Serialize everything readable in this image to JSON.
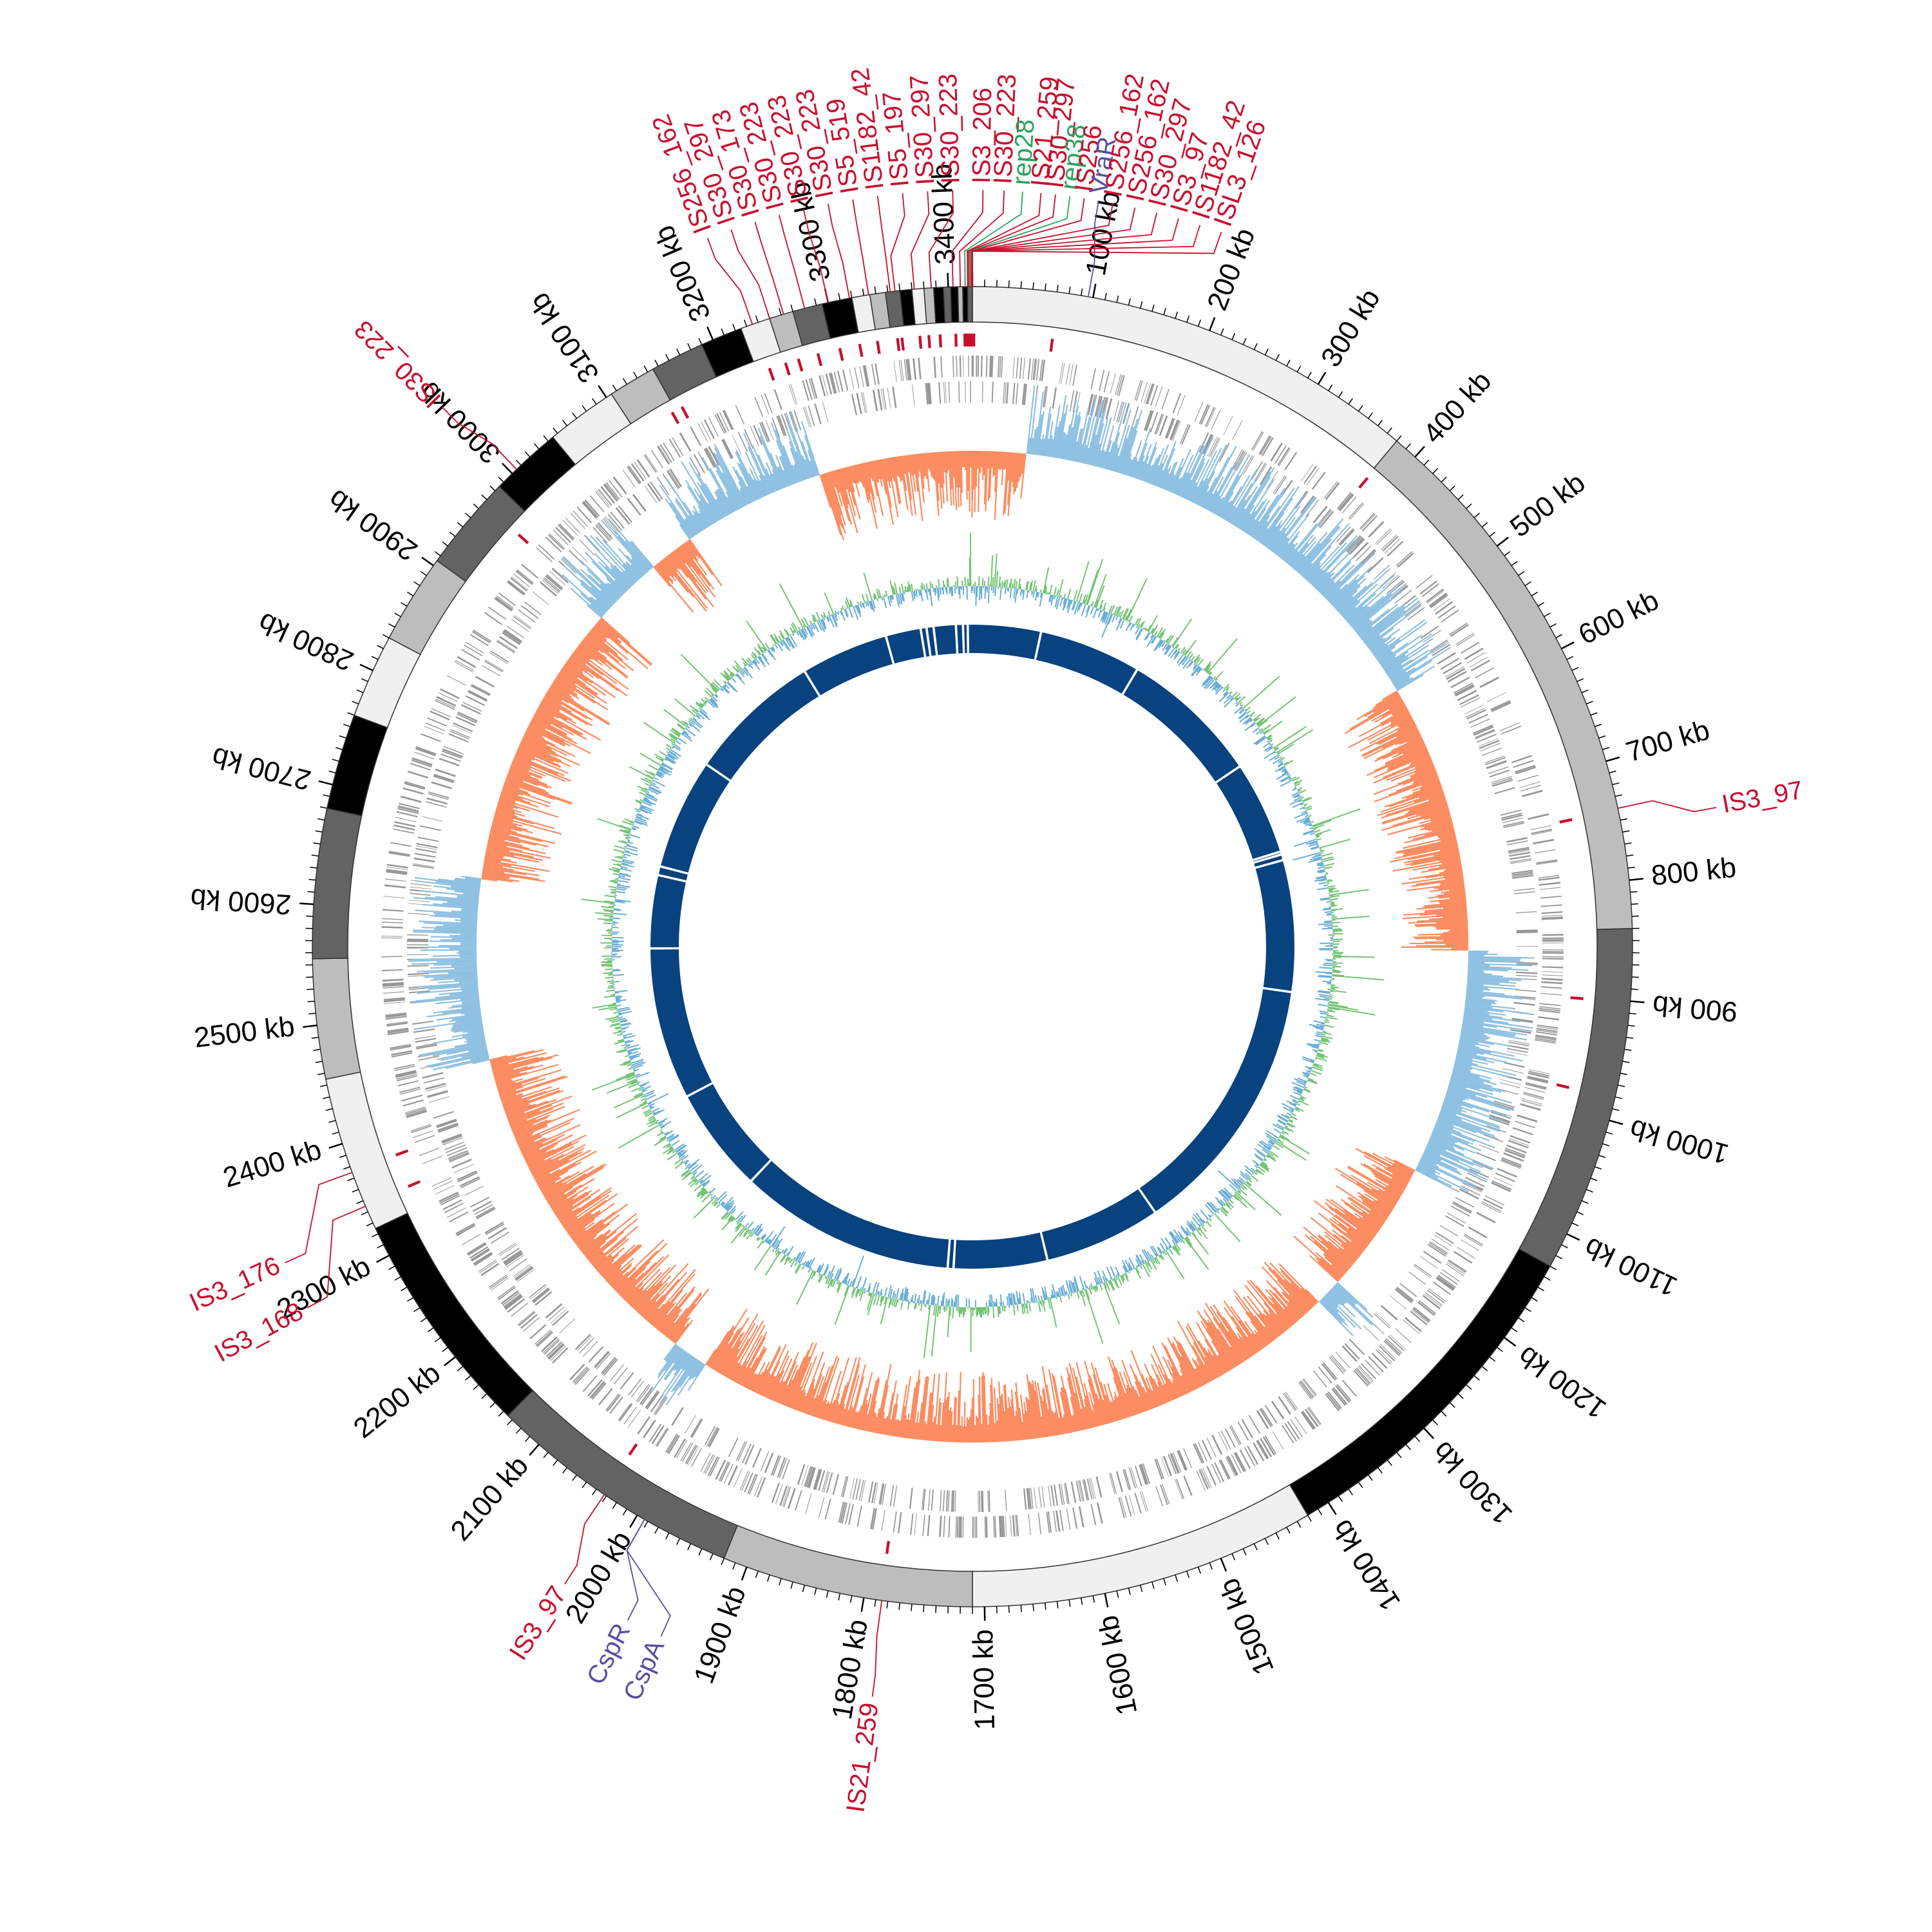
{
  "genome": {
    "length_kb": 3420
  },
  "colors": {
    "is_element": "#c8102e",
    "rep": "#2ca25f",
    "effector": "#5b4ea0",
    "gene": "#969696",
    "skew_positive": "#fc8d62",
    "skew_negative": "#8fc1e3",
    "gc_positive": "#74c476",
    "gc_negative": "#6baed6",
    "homology": "#08427f"
  },
  "tick_labels": [
    "100 kb",
    "200 kb",
    "300 kb",
    "400 kb",
    "500 kb",
    "600 kb",
    "700 kb",
    "800 kb",
    "900 kb",
    "1000 kb",
    "1100 kb",
    "1200 kb",
    "1300 kb",
    "1400 kb",
    "1500 kb",
    "1600 kb",
    "1700 kb",
    "1800 kb",
    "1900 kb",
    "2000 kb",
    "2100 kb",
    "2200 kb",
    "2300 kb",
    "2400 kb",
    "2500 kb",
    "2600 kb",
    "2700 kb",
    "2800 kb",
    "2900 kb",
    "3000 kb",
    "3100 kb",
    "3200 kb",
    "3300 kb",
    "3400 kb"
  ],
  "contigs": [
    {
      "start": 0,
      "end": 380,
      "shade": "#f0f0f0"
    },
    {
      "start": 380,
      "end": 840,
      "shade": "#bdbdbd"
    },
    {
      "start": 840,
      "end": 1130,
      "shade": "#636363"
    },
    {
      "start": 1130,
      "end": 1420,
      "shade": "#000000"
    },
    {
      "start": 1420,
      "end": 1710,
      "shade": "#f0f0f0"
    },
    {
      "start": 1710,
      "end": 1920,
      "shade": "#bdbdbd"
    },
    {
      "start": 1920,
      "end": 2135,
      "shade": "#636363"
    },
    {
      "start": 2135,
      "end": 2325,
      "shade": "#000000"
    },
    {
      "start": 2325,
      "end": 2455,
      "shade": "#f0f0f0"
    },
    {
      "start": 2455,
      "end": 2555,
      "shade": "#bdbdbd"
    },
    {
      "start": 2555,
      "end": 2680,
      "shade": "#636363"
    },
    {
      "start": 2680,
      "end": 2760,
      "shade": "#000000"
    },
    {
      "start": 2760,
      "end": 2830,
      "shade": "#f0f0f0"
    },
    {
      "start": 2830,
      "end": 2905,
      "shade": "#bdbdbd"
    },
    {
      "start": 2905,
      "end": 2985,
      "shade": "#636363"
    },
    {
      "start": 2985,
      "end": 3045,
      "shade": "#000000"
    },
    {
      "start": 3045,
      "end": 3105,
      "shade": "#f0f0f0"
    },
    {
      "start": 3105,
      "end": 3145,
      "shade": "#bdbdbd"
    },
    {
      "start": 3145,
      "end": 3190,
      "shade": "#636363"
    },
    {
      "start": 3190,
      "end": 3225,
      "shade": "#000000"
    },
    {
      "start": 3225,
      "end": 3250,
      "shade": "#f0f0f0"
    },
    {
      "start": 3250,
      "end": 3270,
      "shade": "#bdbdbd"
    },
    {
      "start": 3270,
      "end": 3295,
      "shade": "#636363"
    },
    {
      "start": 3295,
      "end": 3320,
      "shade": "#000000"
    },
    {
      "start": 3320,
      "end": 3335,
      "shade": "#f0f0f0"
    },
    {
      "start": 3335,
      "end": 3348,
      "shade": "#bdbdbd"
    },
    {
      "start": 3348,
      "end": 3360,
      "shade": "#636363"
    },
    {
      "start": 3360,
      "end": 3370,
      "shade": "#000000"
    },
    {
      "start": 3370,
      "end": 3380,
      "shade": "#f0f0f0"
    },
    {
      "start": 3380,
      "end": 3388,
      "shade": "#bdbdbd"
    },
    {
      "start": 3388,
      "end": 3396,
      "shade": "#000000"
    },
    {
      "start": 3396,
      "end": 3402,
      "shade": "#636363"
    },
    {
      "start": 3402,
      "end": 3408,
      "shade": "#000000"
    },
    {
      "start": 3408,
      "end": 3412,
      "shade": "#bdbdbd"
    },
    {
      "start": 3412,
      "end": 3416,
      "shade": "#000000"
    },
    {
      "start": 3416,
      "end": 3420,
      "shade": "#636363"
    }
  ],
  "annotations": [
    {
      "label": "IS256_162",
      "pos": 3235,
      "type": "is",
      "label_angle": -20.5
    },
    {
      "label": "IS30_297",
      "pos": 3250,
      "type": "is",
      "label_angle": -18.6
    },
    {
      "label": "IS30_173",
      "pos": 3262,
      "type": "is",
      "label_angle": -16.7
    },
    {
      "label": "IS30_223",
      "pos": 3280,
      "type": "is",
      "label_angle": -14.8
    },
    {
      "label": "IS30_223",
      "pos": 3300,
      "type": "is",
      "label_angle": -12.9
    },
    {
      "label": "IS30_223",
      "pos": 3318,
      "type": "is",
      "label_angle": -11.0
    },
    {
      "label": "IS5_519",
      "pos": 3334,
      "type": "is",
      "label_angle": -9.1
    },
    {
      "label": "IS1182_42",
      "pos": 3352,
      "type": "is",
      "label_angle": -7.2
    },
    {
      "label": "IS5_197",
      "pos": 3356,
      "type": "is",
      "label_angle": -5.3
    },
    {
      "label": "IS30_297",
      "pos": 3372,
      "type": "is",
      "label_angle": -3.4
    },
    {
      "label": "IS30_223",
      "pos": 3386,
      "type": "is",
      "label_angle": -1.5
    },
    {
      "label": "IS3_206",
      "pos": 3404,
      "type": "is",
      "label_angle": 0.8
    },
    {
      "label": "IS30_223",
      "pos": 3410,
      "type": "is",
      "label_angle": 2.4
    },
    {
      "label": "rep28",
      "pos": 3414,
      "type": "rep",
      "label_angle": 3.8
    },
    {
      "label": "IS21_259",
      "pos": 3416,
      "type": "is",
      "label_angle": 5.2
    },
    {
      "label": "IS30_297",
      "pos": 3417,
      "type": "is",
      "label_angle": 6.3
    },
    {
      "label": "rep38",
      "pos": 3418,
      "type": "rep",
      "label_angle": 7.4
    },
    {
      "label": "IS256",
      "pos": 3419,
      "type": "is",
      "label_angle": 8.5
    },
    {
      "label": "VraR",
      "pos": 96,
      "type": "effector",
      "label_angle": 9.6
    },
    {
      "label": "IS256_162",
      "pos": 3420,
      "type": "is",
      "label_angle": 10.7
    },
    {
      "label": "IS256_162",
      "pos": 3420,
      "type": "is",
      "label_angle": 12.4
    },
    {
      "label": "IS30_297",
      "pos": 3420,
      "type": "is",
      "label_angle": 14.1
    },
    {
      "label": "IS3_97",
      "pos": 3420,
      "type": "is",
      "label_angle": 15.8
    },
    {
      "label": "IS1182_42",
      "pos": 3420,
      "type": "is",
      "label_angle": 17.5
    },
    {
      "label": "ISL3_126",
      "pos": 3420,
      "type": "is",
      "label_angle": 19.2
    },
    {
      "label": "IS3_97",
      "pos": 740,
      "type": "is",
      "label_angle": 79.4
    },
    {
      "label": "IS21_259",
      "pos": 1785,
      "type": "is",
      "label_angle": 187.6
    },
    {
      "label": "CspA",
      "pos": 1993,
      "type": "effector",
      "label_angle": 204.3
    },
    {
      "label": "CspR",
      "pos": 1993,
      "type": "effector",
      "label_angle": 207.1
    },
    {
      "label": "IS3_97",
      "pos": 2032,
      "type": "is",
      "label_angle": 212.6
    },
    {
      "label": "IS3_168",
      "pos": 2345,
      "type": "is",
      "label_angle": 241.5
    },
    {
      "label": "IS3_176",
      "pos": 2375,
      "type": "is",
      "label_angle": 245.3
    },
    {
      "label": "IS30_223",
      "pos": 3005,
      "type": "is",
      "label_angle": 315.5
    }
  ],
  "is_marker_positions": [
    3404,
    3412,
    3414,
    3416,
    3417,
    3418,
    3420,
    3390,
    3380,
    3372,
    3356,
    3352,
    3334,
    3318,
    3300,
    3280,
    3262,
    3250,
    3235,
    3150,
    3140,
    2965,
    2375,
    2345,
    2032,
    1785,
    740,
    70,
    380,
    900,
    980
  ],
  "skew_regions": [
    {
      "start": 0,
      "end": 60,
      "sign": "positive"
    },
    {
      "start": 60,
      "end": 560,
      "sign": "negative"
    },
    {
      "start": 560,
      "end": 860,
      "sign": "positive"
    },
    {
      "start": 860,
      "end": 1110,
      "sign": "negative"
    },
    {
      "start": 1110,
      "end": 1260,
      "sign": "positive"
    },
    {
      "start": 1260,
      "end": 1290,
      "sign": "negative"
    },
    {
      "start": 1290,
      "end": 2020,
      "sign": "positive"
    },
    {
      "start": 2020,
      "end": 2060,
      "sign": "negative"
    },
    {
      "start": 2060,
      "end": 2440,
      "sign": "positive"
    },
    {
      "start": 2440,
      "end": 2640,
      "sign": "negative"
    },
    {
      "start": 2640,
      "end": 2960,
      "sign": "positive"
    },
    {
      "start": 2960,
      "end": 3040,
      "sign": "negative"
    },
    {
      "start": 3040,
      "end": 3090,
      "sign": "positive"
    },
    {
      "start": 3090,
      "end": 3250,
      "sign": "negative"
    },
    {
      "start": 3250,
      "end": 3420,
      "sign": "positive"
    }
  ],
  "homology_gaps": [
    115,
    290,
    530,
    690,
    695,
    705,
    930,
    1380,
    1580,
    1740,
    1750,
    2120,
    2300,
    2560,
    2685,
    2700,
    2890,
    3120,
    3270,
    3330,
    3340,
    3352,
    3390,
    3402,
    3410
  ]
}
